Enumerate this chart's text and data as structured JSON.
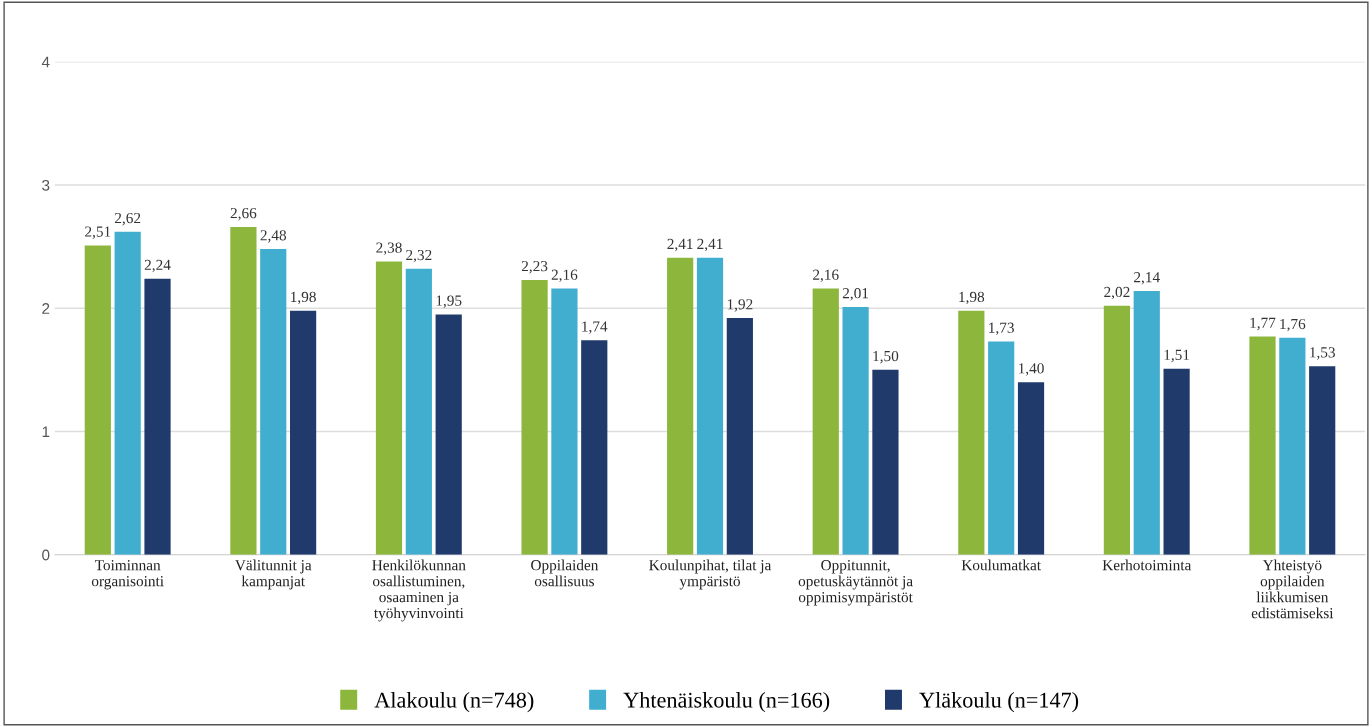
{
  "chart_data": {
    "type": "bar",
    "categories": [
      "Toiminnan\norganisointi",
      "Välitunnit ja\nkampanjat",
      "Henkilökunnan\nosallistuminen,\nosaaminen ja\ntyöhyvinvointi",
      "Oppilaiden\nosallisuus",
      "Koulunpihat, tilat ja\nympäristö",
      "Oppitunnit,\nopetuskäytännöt ja\noppimisympäristöt",
      "Koulumatkat",
      "Kerhotoiminta",
      "Yhteistyö\noppilaiden\nliikkumisen\nedistämiseksi"
    ],
    "series": [
      {
        "name": "Alakoulu (n=748)",
        "color": "#8db63c",
        "values": [
          2.51,
          2.66,
          2.38,
          2.23,
          2.41,
          2.16,
          1.98,
          2.02,
          1.77
        ],
        "value_labels": [
          "2,51",
          "2,66",
          "2,38",
          "2,23",
          "2,41",
          "2,16",
          "1,98",
          "2,02",
          "1,77"
        ]
      },
      {
        "name": "Yhtenäiskoulu (n=166)",
        "color": "#41aed0",
        "values": [
          2.62,
          2.48,
          2.32,
          2.16,
          2.41,
          2.01,
          1.73,
          2.14,
          1.76
        ],
        "value_labels": [
          "2,62",
          "2,48",
          "2,32",
          "2,16",
          "2,41",
          "2,01",
          "1,73",
          "2,14",
          "1,76"
        ]
      },
      {
        "name": "Yläkoulu (n=147)",
        "color": "#1f3a6b",
        "values": [
          2.24,
          1.98,
          1.95,
          1.74,
          1.92,
          1.5,
          1.4,
          1.51,
          1.53
        ],
        "value_labels": [
          "2,24",
          "1,98",
          "1,95",
          "1,74",
          "1,92",
          "1,50",
          "1,40",
          "1,51",
          "1,53"
        ]
      }
    ],
    "ylim": [
      0,
      4
    ],
    "yticks": [
      0,
      1,
      2,
      3,
      4
    ],
    "grid": "y",
    "legend": "bottom"
  }
}
